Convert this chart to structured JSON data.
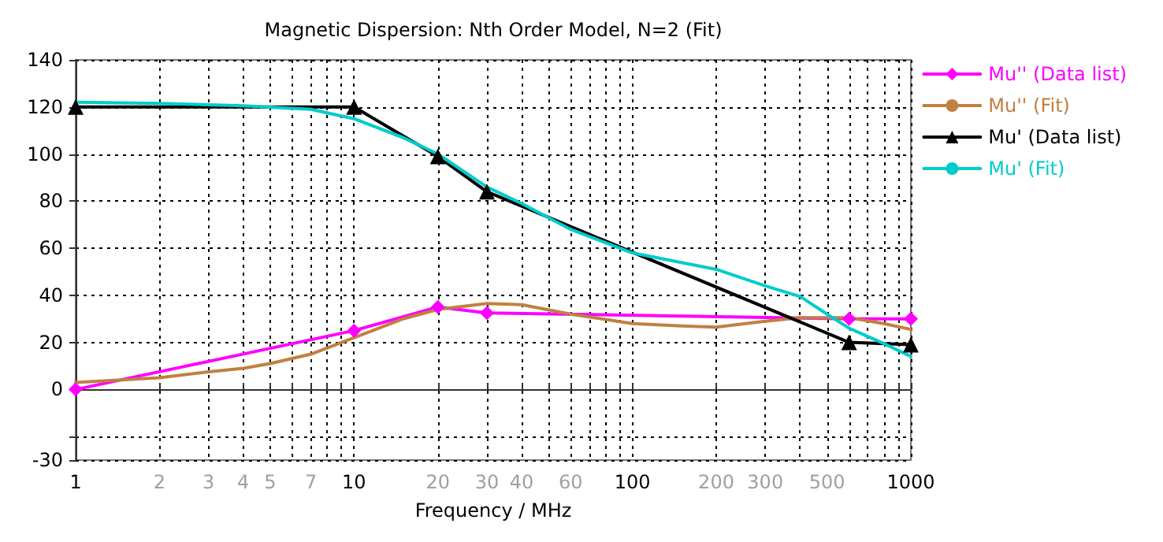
{
  "chart_data": {
    "type": "line",
    "title": "Magnetic Dispersion: Nth Order Model, N=2 (Fit)",
    "xlabel": "Frequency / MHz",
    "log": "x",
    "grid": true,
    "legend": "top right",
    "line_style": "solid",
    "xlim": [
      1,
      1000
    ],
    "xticks": [
      1,
      2,
      3,
      4,
      5,
      {
        "value": 6,
        "label": null
      },
      7,
      {
        "value": 8,
        "label": null
      },
      {
        "value": 9,
        "label": null
      },
      10,
      20,
      30,
      40,
      {
        "value": 50,
        "label": null
      },
      60,
      {
        "value": 70,
        "label": null
      },
      {
        "value": 80,
        "label": null
      },
      {
        "value": 90,
        "label": null
      },
      100,
      200,
      300,
      {
        "value": 400,
        "label": null
      },
      500,
      {
        "value": 600,
        "label": null
      },
      {
        "value": 700,
        "label": null
      },
      {
        "value": 800,
        "label": null
      },
      {
        "value": 900,
        "label": null
      },
      1000
    ],
    "ylim": [
      -30,
      140
    ],
    "yticks": [
      -30,
      {
        "value": -20,
        "label": null
      },
      0,
      20,
      40,
      60,
      80,
      100,
      120,
      140
    ],
    "series": [
      {
        "name": "Mu'' (Data list)",
        "color": "#ff00ff",
        "marker": "diamond",
        "x": [
          1,
          10,
          20,
          30,
          600,
          1000
        ],
        "values": [
          0,
          25,
          35,
          32.5,
          30,
          30
        ]
      },
      {
        "name": "Mu'' (Fit)",
        "color": "#c08040",
        "marker": "none",
        "x": [
          1,
          2,
          3,
          4,
          5,
          7,
          10,
          15,
          20,
          30,
          40,
          60,
          100,
          150,
          200,
          300,
          400,
          600,
          800,
          1000
        ],
        "values": [
          3,
          5,
          7.5,
          9,
          11,
          15,
          22,
          30,
          34,
          36.5,
          36,
          32,
          28,
          27,
          26.5,
          29,
          30.5,
          30.5,
          28,
          25.5
        ]
      },
      {
        "name": "Mu' (Data list)",
        "color": "#000000",
        "marker": "triangle",
        "x": [
          1,
          10,
          20,
          30,
          600,
          1000
        ],
        "values": [
          120,
          120,
          99,
          84,
          20,
          19
        ]
      },
      {
        "name": "Mu' (Fit)",
        "color": "#00cccc",
        "marker": "none",
        "x": [
          1,
          2,
          4,
          7,
          10,
          15,
          20,
          30,
          40,
          60,
          100,
          200,
          300,
          400,
          500,
          600,
          800,
          1000
        ],
        "values": [
          122,
          121.5,
          120.5,
          119,
          115,
          107,
          100,
          86,
          79,
          68,
          58,
          51,
          44,
          39.5,
          32,
          26,
          19.5,
          14
        ]
      }
    ]
  }
}
